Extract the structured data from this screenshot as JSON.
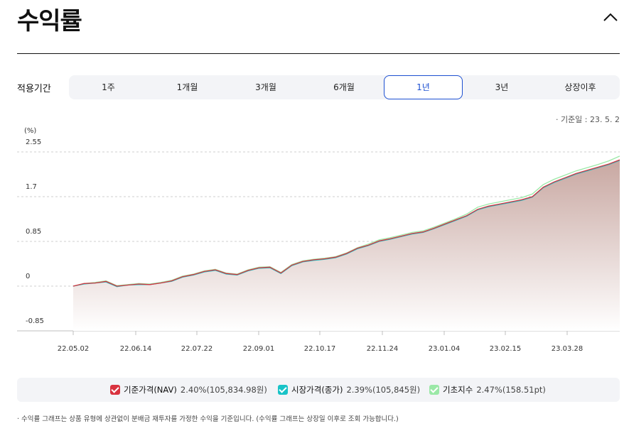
{
  "header": {
    "title": "수익률"
  },
  "period": {
    "label": "적용기간",
    "tabs": [
      "1주",
      "1개월",
      "3개월",
      "6개월",
      "1년",
      "3년",
      "상장이후"
    ],
    "active_index": 4
  },
  "base_date": "· 기준일 : 23. 5. 2",
  "colors": {
    "nav": "#d9333f",
    "market": "#19c3c7",
    "index": "#9be8a7",
    "active_tab": "#1c4fd1",
    "fill": "#c8a7a1"
  },
  "chart_data": {
    "type": "area",
    "ylabel": "(%)",
    "ylim": [
      -0.85,
      2.55
    ],
    "yticks": [
      "2.55",
      "1.7",
      "0.85",
      "0",
      "-0.85"
    ],
    "ytick_values": [
      2.55,
      1.7,
      0.85,
      0,
      -0.85
    ],
    "xticks": [
      "22.05.02",
      "22.06.14",
      "22.07.22",
      "22.09.01",
      "22.10.17",
      "22.11.24",
      "23.01.04",
      "23.02.15",
      "23.03.28"
    ],
    "x": [
      "22.05.02",
      "22.05.16",
      "22.05.30",
      "22.06.10",
      "22.06.14",
      "22.06.20",
      "22.06.28",
      "22.07.06",
      "22.07.15",
      "22.07.22",
      "22.07.29",
      "22.08.05",
      "22.08.15",
      "22.08.22",
      "22.08.29",
      "22.09.01",
      "22.09.08",
      "22.09.16",
      "22.09.23",
      "22.09.28",
      "22.10.04",
      "22.10.10",
      "22.10.17",
      "22.10.24",
      "22.10.31",
      "22.11.07",
      "22.11.14",
      "22.11.24",
      "22.12.02",
      "22.12.09",
      "22.12.16",
      "22.12.23",
      "22.12.29",
      "23.01.04",
      "23.01.11",
      "23.01.18",
      "23.01.26",
      "23.02.02",
      "23.02.09",
      "23.02.15",
      "23.02.22",
      "23.02.28",
      "23.03.08",
      "23.03.15",
      "23.03.22",
      "23.03.28",
      "23.04.04",
      "23.04.11",
      "23.04.18",
      "23.04.25",
      "23.05.02"
    ],
    "series": [
      {
        "name": "기준가격(NAV)",
        "values": [
          0.0,
          0.05,
          0.06,
          0.09,
          0.0,
          0.02,
          0.04,
          0.03,
          0.06,
          0.1,
          0.18,
          0.22,
          0.28,
          0.31,
          0.24,
          0.22,
          0.3,
          0.35,
          0.36,
          0.25,
          0.4,
          0.47,
          0.5,
          0.52,
          0.55,
          0.62,
          0.72,
          0.78,
          0.86,
          0.9,
          0.95,
          1.0,
          1.03,
          1.1,
          1.18,
          1.26,
          1.34,
          1.46,
          1.52,
          1.56,
          1.6,
          1.64,
          1.7,
          1.88,
          1.98,
          2.06,
          2.14,
          2.2,
          2.26,
          2.32,
          2.4
        ]
      },
      {
        "name": "시장가격(종가)",
        "values": [
          0.0,
          0.04,
          0.06,
          0.08,
          -0.01,
          0.02,
          0.03,
          0.03,
          0.06,
          0.09,
          0.17,
          0.21,
          0.27,
          0.3,
          0.23,
          0.21,
          0.29,
          0.34,
          0.35,
          0.24,
          0.39,
          0.46,
          0.49,
          0.51,
          0.54,
          0.61,
          0.71,
          0.77,
          0.85,
          0.89,
          0.94,
          0.99,
          1.02,
          1.09,
          1.17,
          1.25,
          1.33,
          1.45,
          1.51,
          1.55,
          1.59,
          1.63,
          1.69,
          1.87,
          1.97,
          2.05,
          2.13,
          2.19,
          2.25,
          2.31,
          2.39
        ]
      },
      {
        "name": "기초지수",
        "values": [
          0.0,
          0.05,
          0.07,
          0.1,
          0.01,
          0.03,
          0.05,
          0.04,
          0.07,
          0.11,
          0.19,
          0.23,
          0.29,
          0.32,
          0.25,
          0.23,
          0.31,
          0.36,
          0.37,
          0.26,
          0.41,
          0.48,
          0.51,
          0.53,
          0.56,
          0.63,
          0.73,
          0.8,
          0.88,
          0.92,
          0.97,
          1.02,
          1.05,
          1.12,
          1.2,
          1.28,
          1.37,
          1.5,
          1.56,
          1.6,
          1.64,
          1.68,
          1.75,
          1.93,
          2.03,
          2.11,
          2.19,
          2.25,
          2.31,
          2.38,
          2.47
        ]
      }
    ]
  },
  "legend": [
    {
      "name": "기준가격(NAV)",
      "value": "2.40%(105,834.98원)"
    },
    {
      "name": "시장가격(종가)",
      "value": "2.39%(105,845원)"
    },
    {
      "name": "기초지수",
      "value": "2.47%(158.51pt)"
    }
  ],
  "footnote": "· 수익률 그래프는 상품 유형에 상관없이 분배금 재투자를 가정한 수익을 기준입니다. (수익률 그래프는 상장일 이후로 조회 가능합니다.)"
}
